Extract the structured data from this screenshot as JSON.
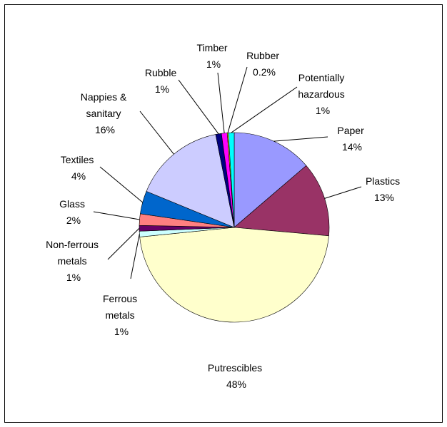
{
  "chart_data": {
    "type": "pie",
    "title": "",
    "slices": [
      {
        "label": "Paper",
        "pct_label": "14%",
        "value": 14,
        "color": "#9999ff"
      },
      {
        "label": "Plastics",
        "pct_label": "13%",
        "value": 13,
        "color": "#993366"
      },
      {
        "label": "Putrescibles",
        "pct_label": "48%",
        "value": 48,
        "color": "#ffffcc"
      },
      {
        "label": "Ferrous metals",
        "pct_label": "1%",
        "value": 1,
        "color": "#ccffff"
      },
      {
        "label": "Non-ferrous metals",
        "pct_label": "1%",
        "value": 1,
        "color": "#660066"
      },
      {
        "label": "Glass",
        "pct_label": "2%",
        "value": 2,
        "color": "#ff8080"
      },
      {
        "label": "Textiles",
        "pct_label": "4%",
        "value": 4,
        "color": "#0066cc"
      },
      {
        "label": "Nappies & sanitary",
        "pct_label": "16%",
        "value": 16,
        "color": "#ccccff"
      },
      {
        "label": "Rubble",
        "pct_label": "1%",
        "value": 1,
        "color": "#000080"
      },
      {
        "label": "Timber",
        "pct_label": "1%",
        "value": 1,
        "color": "#ff00ff"
      },
      {
        "label": "Rubber",
        "pct_label": "0.2%",
        "value": 0.2,
        "color": "#ffff00"
      },
      {
        "label": "Potentially hazardous",
        "pct_label": "1%",
        "value": 1,
        "color": "#00ffff"
      }
    ]
  }
}
